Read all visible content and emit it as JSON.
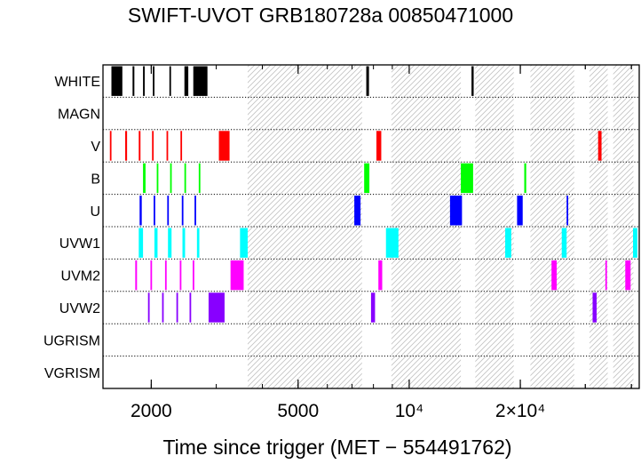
{
  "chart_data": {
    "type": "timeline",
    "title": "SWIFT-UVOT GRB180728a 00850471000",
    "xlabel": "Time since trigger (MET − 554491762)",
    "xscale": "log",
    "xlim": [
      1480,
      42000
    ],
    "x_ticks": [
      {
        "value": 2000,
        "label": "2000"
      },
      {
        "value": 5000,
        "label": "5000"
      },
      {
        "value": 10000,
        "label": "10⁴"
      },
      {
        "value": 20000,
        "label": "2×10⁴"
      }
    ],
    "rows": [
      "WHITE",
      "MAGN",
      "V",
      "B",
      "U",
      "UVW1",
      "UVM2",
      "UVW2",
      "UGRISM",
      "VGRISM"
    ],
    "colors": {
      "WHITE": "#000000",
      "MAGN": "#808080",
      "V": "#ff0000",
      "B": "#00ff00",
      "U": "#0000ff",
      "UVW1": "#00ffff",
      "UVM2": "#ff00ff",
      "UVW2": "#8800ff",
      "UGRISM": "#000000",
      "VGRISM": "#000000"
    },
    "hatch_intervals": [
      [
        3650,
        7450
      ],
      [
        8950,
        13800
      ],
      [
        15100,
        19200
      ],
      [
        21300,
        28000
      ],
      [
        30800,
        34500
      ],
      [
        35700,
        40500
      ]
    ],
    "exposures": {
      "WHITE": [
        [
          1560,
          1670
        ],
        [
          1780,
          1800
        ],
        [
          1900,
          1920
        ],
        [
          2020,
          2040
        ],
        [
          2240,
          2260
        ],
        [
          2460,
          2520
        ],
        [
          2600,
          2840
        ],
        [
          7650,
          7780
        ],
        [
          14750,
          14950
        ]
      ],
      "MAGN": [],
      "V": [
        [
          1545,
          1555
        ],
        [
          1700,
          1720
        ],
        [
          1850,
          1870
        ],
        [
          2010,
          2030
        ],
        [
          2200,
          2220
        ],
        [
          2400,
          2420
        ],
        [
          3050,
          3260
        ],
        [
          8150,
          8400
        ],
        [
          32500,
          33200
        ]
      ],
      "B": [
        [
          1900,
          1930
        ],
        [
          2070,
          2090
        ],
        [
          2250,
          2270
        ],
        [
          2460,
          2480
        ],
        [
          2690,
          2710
        ],
        [
          7550,
          7800
        ],
        [
          13800,
          14900
        ],
        [
          20500,
          20750
        ]
      ],
      "U": [
        [
          1860,
          1885
        ],
        [
          2030,
          2050
        ],
        [
          2210,
          2230
        ],
        [
          2420,
          2440
        ],
        [
          2620,
          2640
        ],
        [
          7100,
          7380
        ],
        [
          12900,
          13900
        ],
        [
          19600,
          20300
        ],
        [
          26700,
          26950
        ]
      ],
      "UVW1": [
        [
          1850,
          1900
        ],
        [
          2040,
          2080
        ],
        [
          2220,
          2270
        ],
        [
          2430,
          2470
        ],
        [
          2660,
          2700
        ],
        [
          3480,
          3650
        ],
        [
          8650,
          9350
        ],
        [
          18200,
          18900
        ],
        [
          25900,
          26700
        ],
        [
          40400,
          41500
        ]
      ],
      "UVM2": [
        [
          1810,
          1830
        ],
        [
          1990,
          2010
        ],
        [
          2180,
          2200
        ],
        [
          2390,
          2410
        ],
        [
          2590,
          2610
        ],
        [
          3280,
          3560
        ],
        [
          8250,
          8450
        ],
        [
          24300,
          25100
        ],
        [
          34000,
          34300
        ],
        [
          38500,
          39800
        ]
      ],
      "UVW2": [
        [
          1960,
          1980
        ],
        [
          2140,
          2160
        ],
        [
          2340,
          2360
        ],
        [
          2540,
          2560
        ],
        [
          2860,
          3160
        ],
        [
          7880,
          8080
        ],
        [
          31400,
          32200
        ]
      ],
      "UGRISM": [],
      "VGRISM": []
    }
  }
}
